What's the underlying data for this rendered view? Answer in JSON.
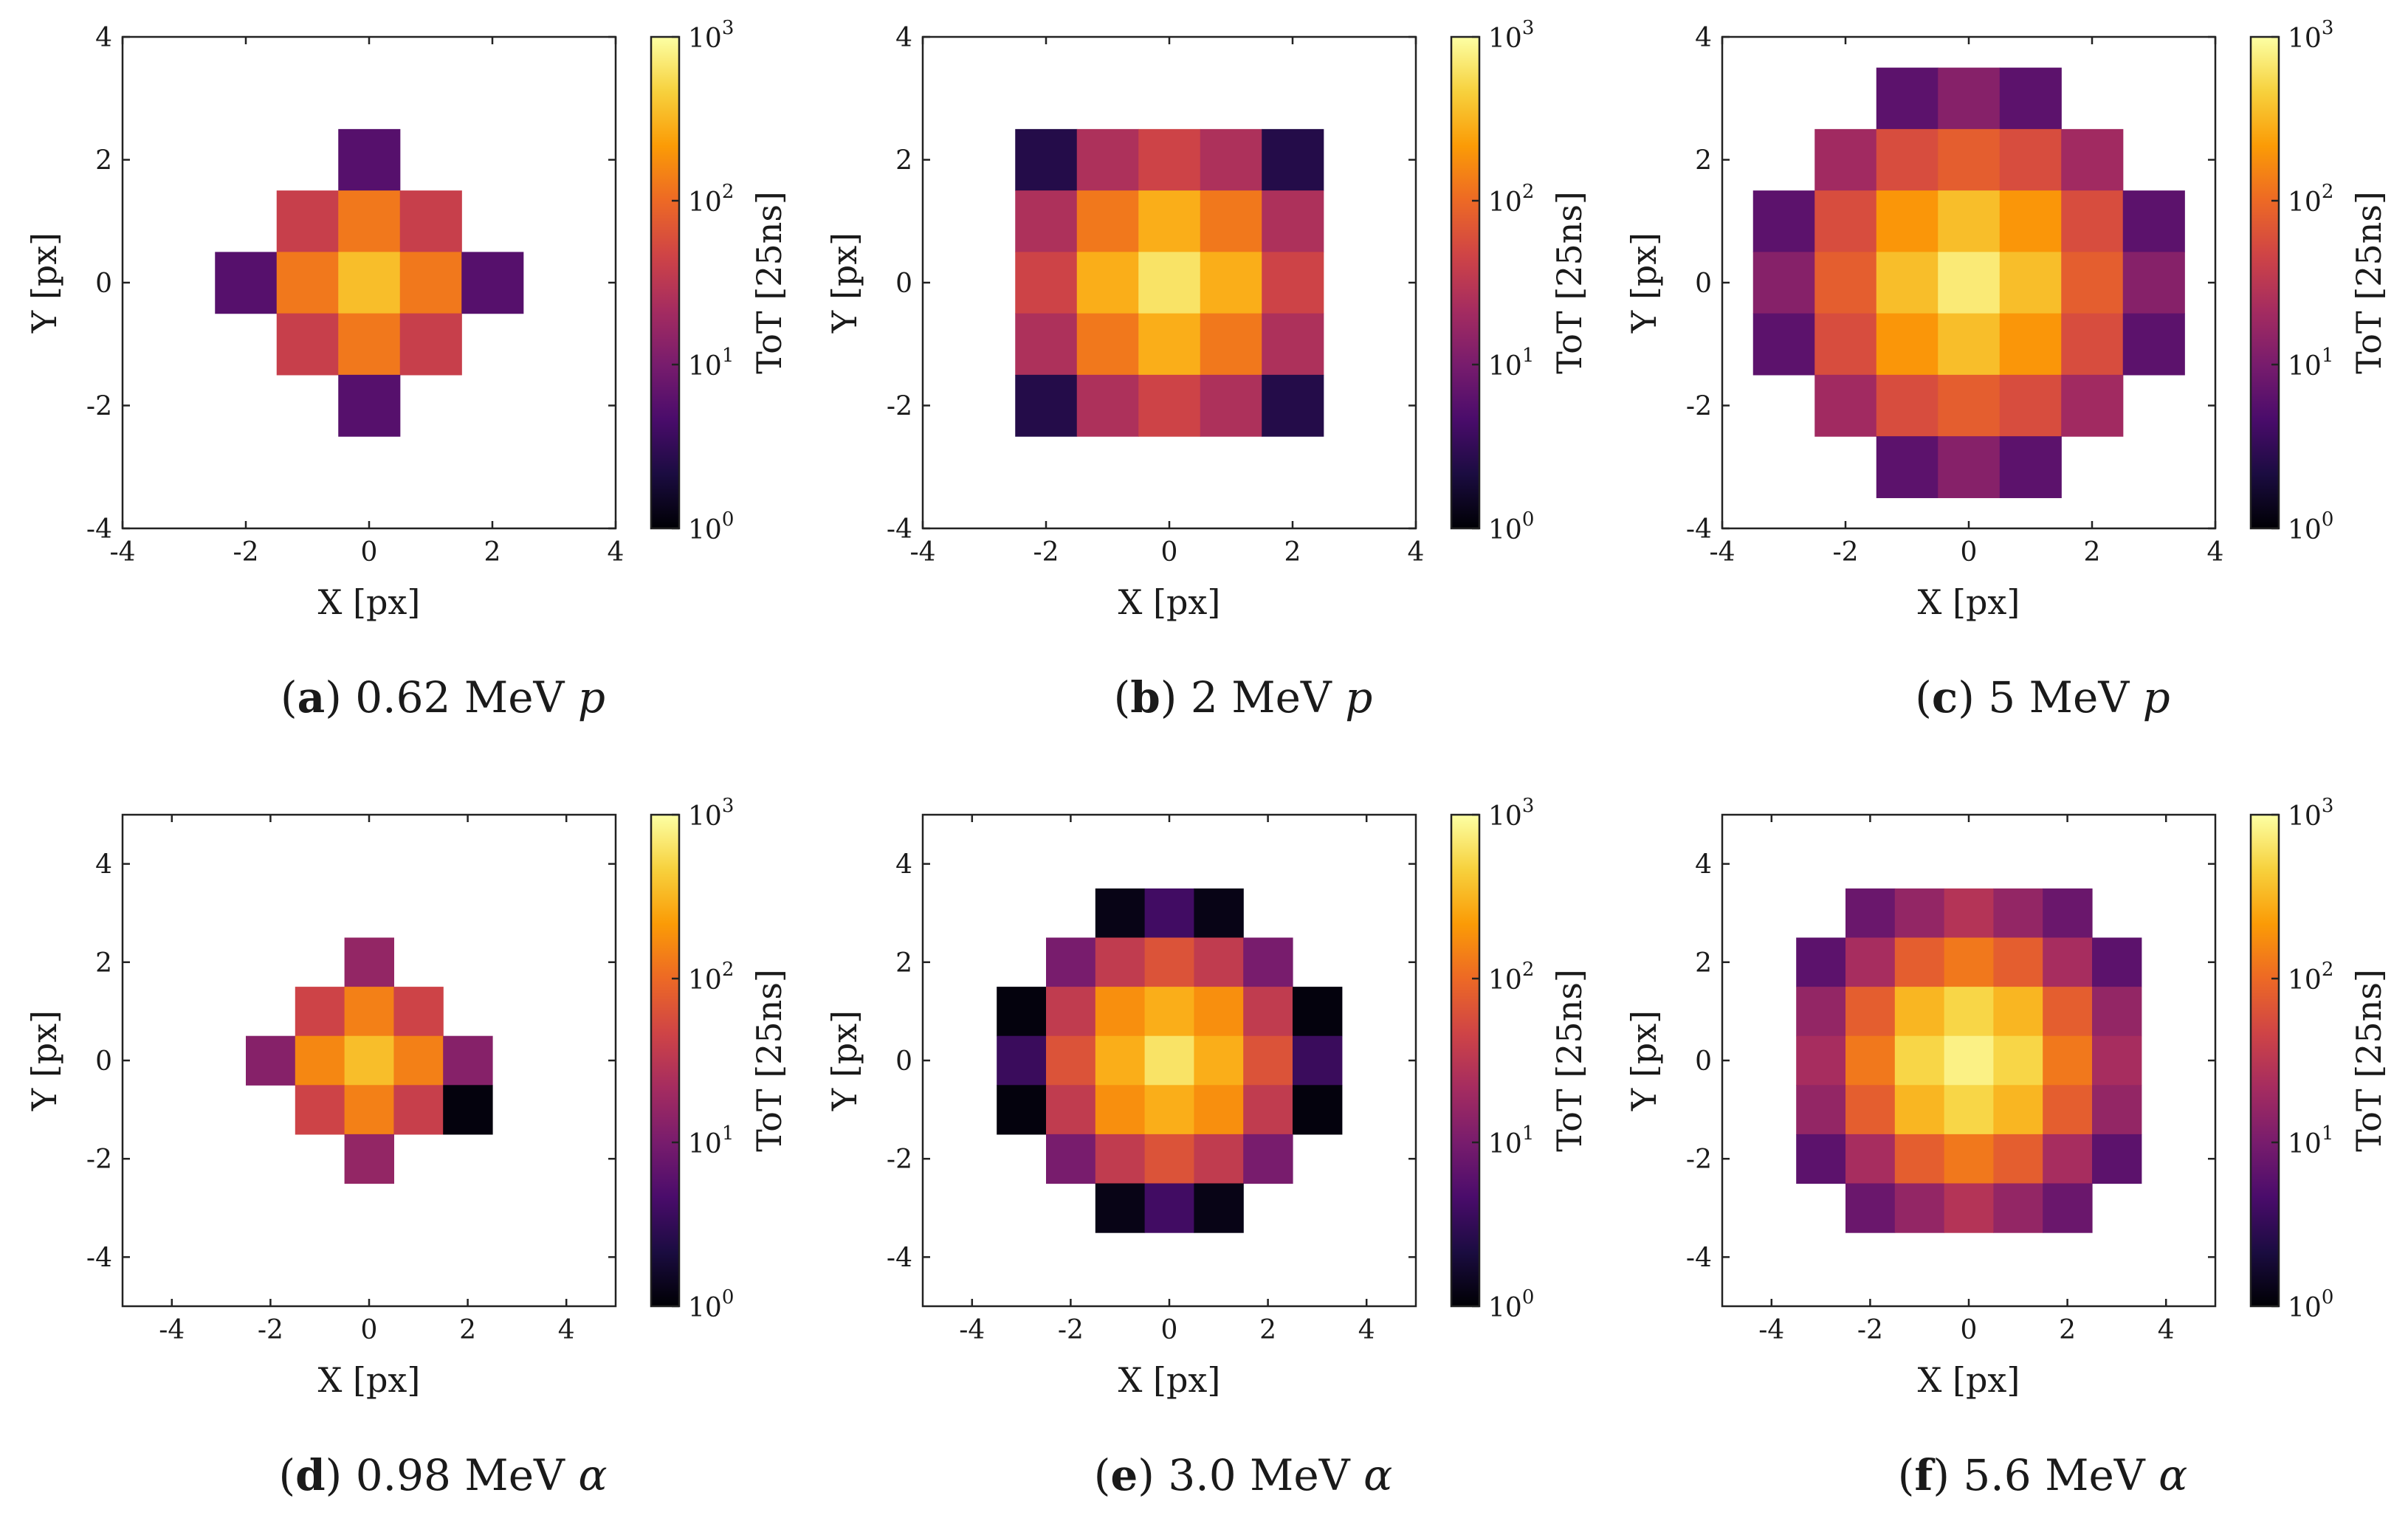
{
  "figure": {
    "colormap": [
      "#000004",
      "#1b0c41",
      "#4a0c6b",
      "#781c6d",
      "#a52c60",
      "#cf4446",
      "#ed6925",
      "#fb9b06",
      "#f7d13d",
      "#fcffa4"
    ],
    "colorbar": {
      "label": "ToT [25ns]",
      "tick_labels": [
        {
          "base": "10",
          "exp": "0"
        },
        {
          "base": "10",
          "exp": "1"
        },
        {
          "base": "10",
          "exp": "2"
        },
        {
          "base": "10",
          "exp": "3"
        }
      ]
    }
  },
  "chart_data": [
    {
      "type": "heatmap",
      "letter": "a",
      "caption": "0.62 MeV",
      "particle": "p",
      "xlabel": "X [px]",
      "ylabel": "Y [px]",
      "xlim": [
        -4,
        4
      ],
      "ylim": [
        -4,
        4
      ],
      "xticks": [
        "-4",
        "-2",
        "0",
        "2",
        "4"
      ],
      "yticks": [
        "-4",
        "-2",
        "0",
        "2",
        "4"
      ],
      "clim_log10": [
        0,
        3
      ],
      "row_start_y": 2,
      "col_start_x": -2,
      "log10_tot": [
        [
          null,
          null,
          0.75,
          null,
          null
        ],
        [
          null,
          1.6,
          2.1,
          1.6,
          null
        ],
        [
          0.75,
          2.1,
          2.55,
          2.1,
          0.75
        ],
        [
          null,
          1.6,
          2.1,
          1.6,
          null
        ],
        [
          null,
          null,
          0.75,
          null,
          null
        ]
      ]
    },
    {
      "type": "heatmap",
      "letter": "b",
      "caption": "2 MeV",
      "particle": "p",
      "xlabel": "X [px]",
      "ylabel": "Y [px]",
      "xlim": [
        -4,
        4
      ],
      "ylim": [
        -4,
        4
      ],
      "xticks": [
        "-4",
        "-2",
        "0",
        "2",
        "4"
      ],
      "yticks": [
        "-4",
        "-2",
        "0",
        "2",
        "4"
      ],
      "clim_log10": [
        0,
        3
      ],
      "row_start_y": 2,
      "col_start_x": -2,
      "log10_tot": [
        [
          0.4,
          1.4,
          1.65,
          1.4,
          0.4
        ],
        [
          1.4,
          2.1,
          2.45,
          2.1,
          1.4
        ],
        [
          1.65,
          2.45,
          2.8,
          2.45,
          1.65
        ],
        [
          1.4,
          2.1,
          2.45,
          2.1,
          1.4
        ],
        [
          0.4,
          1.4,
          1.65,
          1.4,
          0.4
        ]
      ]
    },
    {
      "type": "heatmap",
      "letter": "c",
      "caption": "5 MeV",
      "particle": "p",
      "xlabel": "X [px]",
      "ylabel": "Y [px]",
      "xlim": [
        -4,
        4
      ],
      "ylim": [
        -4,
        4
      ],
      "xticks": [
        "-4",
        "-2",
        "0",
        "2",
        "4"
      ],
      "yticks": [
        "-4",
        "-2",
        "0",
        "2",
        "4"
      ],
      "clim_log10": [
        0,
        3
      ],
      "row_start_y": 3,
      "col_start_x": -3,
      "log10_tot": [
        [
          null,
          null,
          0.8,
          1.1,
          0.8,
          null,
          null
        ],
        [
          null,
          1.3,
          1.75,
          1.9,
          1.75,
          1.3,
          null
        ],
        [
          0.8,
          1.75,
          2.3,
          2.55,
          2.3,
          1.75,
          0.8
        ],
        [
          1.1,
          1.9,
          2.55,
          2.85,
          2.55,
          1.9,
          1.1
        ],
        [
          0.8,
          1.75,
          2.3,
          2.55,
          2.3,
          1.75,
          0.8
        ],
        [
          null,
          1.3,
          1.75,
          1.9,
          1.75,
          1.3,
          null
        ],
        [
          null,
          null,
          0.8,
          1.1,
          0.8,
          null,
          null
        ]
      ]
    },
    {
      "type": "heatmap",
      "letter": "d",
      "caption": "0.98 MeV",
      "particle": "α",
      "xlabel": "X [px]",
      "ylabel": "Y [px]",
      "xlim": [
        -5,
        5
      ],
      "ylim": [
        -5,
        5
      ],
      "xticks": [
        "-4",
        "-2",
        "0",
        "2",
        "4"
      ],
      "yticks": [
        "-4",
        "-2",
        "0",
        "2",
        "4"
      ],
      "clim_log10": [
        0,
        3
      ],
      "row_start_y": 2,
      "col_start_x": -2,
      "log10_tot": [
        [
          null,
          null,
          1.2,
          null,
          null
        ],
        [
          null,
          1.65,
          2.15,
          1.65,
          null
        ],
        [
          1.1,
          2.2,
          2.55,
          2.15,
          1.1
        ],
        [
          null,
          1.65,
          2.15,
          1.6,
          0.05
        ],
        [
          null,
          null,
          1.2,
          null,
          null
        ]
      ]
    },
    {
      "type": "heatmap",
      "letter": "e",
      "caption": "3.0 MeV",
      "particle": "α",
      "xlabel": "X [px]",
      "ylabel": "Y [px]",
      "xlim": [
        -5,
        5
      ],
      "ylim": [
        -5,
        5
      ],
      "xticks": [
        "-4",
        "-2",
        "0",
        "2",
        "4"
      ],
      "yticks": [
        "-4",
        "-2",
        "0",
        "2",
        "4"
      ],
      "clim_log10": [
        0,
        3
      ],
      "row_start_y": 3,
      "col_start_x": -3,
      "log10_tot": [
        [
          null,
          null,
          0.1,
          0.6,
          0.1,
          null,
          null
        ],
        [
          null,
          1.0,
          1.55,
          1.8,
          1.55,
          1.0,
          null
        ],
        [
          0.05,
          1.55,
          2.25,
          2.45,
          2.25,
          1.55,
          0.05
        ],
        [
          0.55,
          1.8,
          2.45,
          2.8,
          2.45,
          1.8,
          0.55
        ],
        [
          0.05,
          1.55,
          2.25,
          2.45,
          2.25,
          1.55,
          0.05
        ],
        [
          null,
          1.0,
          1.55,
          1.8,
          1.55,
          1.0,
          null
        ],
        [
          null,
          null,
          0.1,
          0.6,
          0.1,
          null,
          null
        ]
      ]
    },
    {
      "type": "heatmap",
      "letter": "f",
      "caption": "5.6 MeV",
      "particle": "α",
      "xlabel": "X [px]",
      "ylabel": "Y [px]",
      "xlim": [
        -5,
        5
      ],
      "ylim": [
        -5,
        5
      ],
      "xticks": [
        "-4",
        "-2",
        "0",
        "2",
        "4"
      ],
      "yticks": [
        "-4",
        "-2",
        "0",
        "2",
        "4"
      ],
      "clim_log10": [
        0,
        3
      ],
      "row_start_y": 3,
      "col_start_x": -3,
      "log10_tot": [
        [
          null,
          0.9,
          1.2,
          1.45,
          1.2,
          0.9,
          null
        ],
        [
          0.8,
          1.35,
          1.9,
          2.1,
          1.9,
          1.35,
          0.8
        ],
        [
          1.2,
          1.9,
          2.5,
          2.7,
          2.5,
          1.9,
          1.2
        ],
        [
          1.35,
          2.1,
          2.7,
          2.9,
          2.7,
          2.1,
          1.35
        ],
        [
          1.2,
          1.9,
          2.5,
          2.7,
          2.5,
          1.9,
          1.2
        ],
        [
          0.8,
          1.35,
          1.9,
          2.1,
          1.9,
          1.35,
          0.8
        ],
        [
          null,
          0.9,
          1.2,
          1.45,
          1.2,
          0.9,
          null
        ]
      ]
    }
  ]
}
